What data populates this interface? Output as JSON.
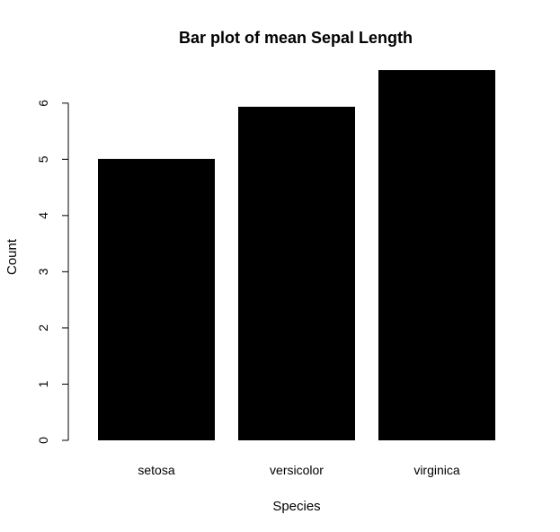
{
  "chart_data": {
    "type": "bar",
    "title": "Bar plot of mean Sepal Length",
    "xlabel": "Species",
    "ylabel": "Count",
    "categories": [
      "setosa",
      "versicolor",
      "virginica"
    ],
    "values": [
      5.006,
      5.936,
      6.588
    ],
    "ylim": [
      0,
      6.588
    ],
    "yticks": [
      0,
      1,
      2,
      3,
      4,
      5,
      6
    ],
    "bar_color": "#000000",
    "grid": false,
    "legend": "none"
  }
}
